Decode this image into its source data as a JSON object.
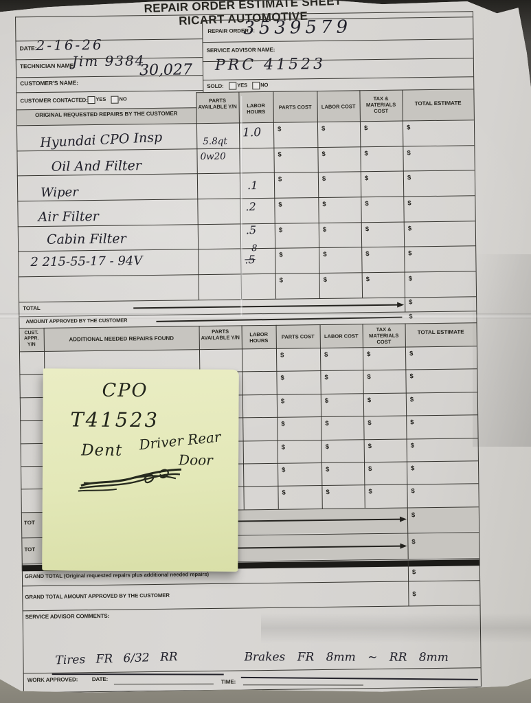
{
  "colors": {
    "paper": "#d6d4d1",
    "background": "#4a4844",
    "sticky_note": "#e6eaba",
    "ink": "#22222a",
    "form_line": "#34332e"
  },
  "symbols": {
    "dollar": "$"
  },
  "title": {
    "line1": "REPAIR ORDER ESTIMATE SHEET",
    "line2": "RICART AUTOMOTIVE"
  },
  "meta": {
    "repair_order_label": "REPAIR ORDER #:",
    "repair_order_value": "3539579",
    "service_advisor_label": "SERVICE ADVISOR NAME:",
    "service_advisor_value": "PRC 41523",
    "date_label": "DATE:",
    "date_value": "2-16-26",
    "technician_label": "TECHNICIAN NAME:",
    "technician_value": "Jim 9384",
    "customer_label": "CUSTOMER'S NAME:",
    "customer_value": "30,027",
    "sold_label": "SOLD:",
    "customer_contacted_label": "CUSTOMER CONTACTED:",
    "yes_label": "YES",
    "no_label": "NO"
  },
  "table1": {
    "columns": {
      "repairs": "ORIGINAL REQUESTED REPAIRS BY THE CUSTOMER",
      "parts_available": "PARTS AVAILABLE Y/N",
      "labor_hours": "LABOR HOURS",
      "parts_cost": "PARTS COST",
      "labor_cost": "LABOR COST",
      "tax_materials": "TAX & MATERIALS COST",
      "total_estimate": "TOTAL ESTIMATE"
    },
    "rows": [
      {
        "repair": "Hyundai CPO Insp",
        "labor_hours": "1.0"
      },
      {
        "repair": "Oil And Filter",
        "parts_available_1": "5.8qt",
        "parts_available_2": "0w20"
      },
      {
        "repair": "Wiper",
        "labor_hours": ".1"
      },
      {
        "repair": "Air Filter",
        "labor_hours": ".2"
      },
      {
        "repair": "Cabin Filter",
        "labor_hours": ".5"
      },
      {
        "repair": "2 215-55-17 - 94V",
        "labor_hours_above": "8",
        "labor_hours_struck": ".5"
      },
      {
        "repair": ""
      }
    ],
    "total_label": "TOTAL",
    "amount_approved_label": "AMOUNT APPROVED BY THE CUSTOMER"
  },
  "table2": {
    "columns": {
      "cust_appr": "CUST. APPR. Y/N",
      "additional": "ADDITIONAL NEEDED REPAIRS FOUND",
      "parts_available": "PARTS AVAILABLE Y/N",
      "labor_hours": "LABOR HOURS",
      "parts_cost": "PARTS COST",
      "labor_cost": "LABOR COST",
      "tax_materials": "TAX & MATERIALS COST",
      "total_estimate": "TOTAL ESTIMATE"
    },
    "row_count": 7,
    "total_row1_label": "TOT",
    "total_row2_label": "TOT"
  },
  "sticky_note": {
    "line1": "CPO",
    "line2": "T41523",
    "word_dent": "Dent",
    "word_driver_rear": "Driver Rear",
    "word_door": "Door"
  },
  "footer": {
    "grand_total_label": "GRAND TOTAL (Original requested repairs plus additional needed repairs)",
    "grand_total_approved_label": "GRAND TOTAL AMOUNT APPROVED BY THE CUSTOMER",
    "comments_label": "SERVICE ADVISOR COMMENTS:",
    "work_approved_label": "WORK APPROVED:",
    "date_label": "DATE:",
    "time_label": "TIME:",
    "hand_tires": "Tires  FR  6/32  RR",
    "hand_brakes": "Brakes  FR  8mm  ~  RR  8mm"
  }
}
